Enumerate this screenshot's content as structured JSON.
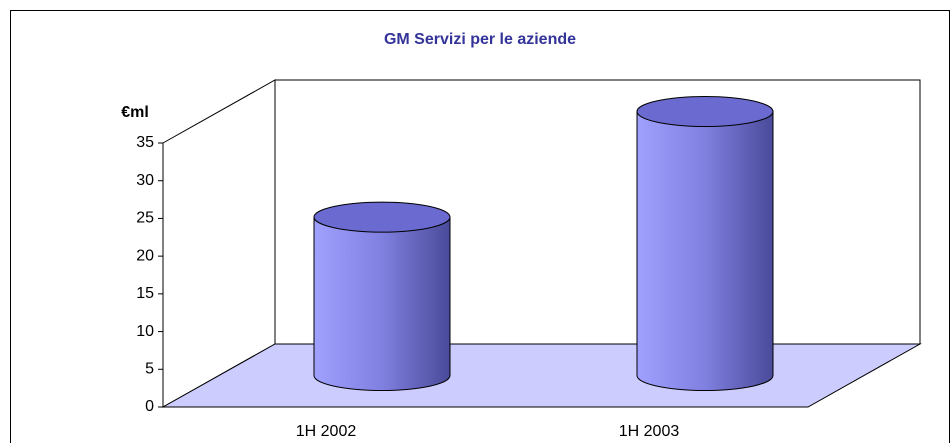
{
  "chart_data": {
    "type": "bar",
    "title": "GM Servizi per le aziende",
    "y_label": "€ml",
    "categories": [
      "1H 2002",
      "1H 2003"
    ],
    "values": [
      21,
      35
    ],
    "color": "#9999ff",
    "ylim": [
      0,
      35
    ],
    "yticks": [
      0,
      5,
      10,
      15,
      20,
      25,
      30,
      35
    ],
    "grid": false
  }
}
